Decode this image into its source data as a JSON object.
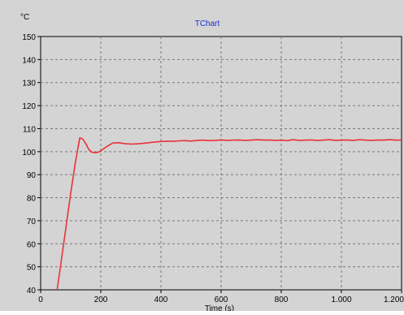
{
  "chart_data": {
    "type": "line",
    "title": "TChart",
    "ylabel": "°C",
    "xlabel": "Time (s)",
    "xlim": [
      0,
      1200
    ],
    "ylim": [
      40,
      150
    ],
    "grid": true,
    "x_ticks": [
      0,
      200,
      400,
      600,
      800,
      1000,
      1200
    ],
    "x_tick_labels": [
      "0",
      "200",
      "400",
      "600",
      "800",
      "1.000",
      "1.200"
    ],
    "y_ticks": [
      40,
      50,
      60,
      70,
      80,
      90,
      100,
      110,
      120,
      130,
      140,
      150
    ],
    "series": [
      {
        "color": "#e8323a",
        "x": [
          55,
          70,
          85,
          100,
          115,
          130,
          140,
          150,
          160,
          170,
          180,
          190,
          200,
          210,
          220,
          230,
          240,
          260,
          280,
          300,
          320,
          340,
          360,
          380,
          400,
          420,
          440,
          460,
          480,
          500,
          520,
          540,
          560,
          580,
          600,
          620,
          640,
          660,
          680,
          700,
          720,
          740,
          760,
          780,
          800,
          820,
          840,
          860,
          880,
          900,
          920,
          940,
          960,
          980,
          1000,
          1020,
          1040,
          1060,
          1080,
          1100,
          1120,
          1140,
          1160,
          1180,
          1200
        ],
        "y": [
          40,
          54,
          68,
          82,
          95,
          106,
          105.5,
          103.5,
          101,
          99.8,
          99.5,
          99.7,
          100.4,
          101.3,
          102.2,
          103,
          103.8,
          103.9,
          103.5,
          103.3,
          103.4,
          103.6,
          103.9,
          104.2,
          104.4,
          104.6,
          104.5,
          104.7,
          104.8,
          104.6,
          104.9,
          105,
          104.8,
          104.9,
          105.1,
          104.9,
          105,
          105.1,
          104.9,
          105,
          105.2,
          105,
          105.1,
          104.9,
          105,
          104.8,
          105.2,
          104.9,
          105,
          105.1,
          104.9,
          105,
          105.2,
          104.9,
          105,
          105.1,
          104.9,
          105.2,
          105,
          104.9,
          105.1,
          105,
          105.2,
          105,
          105
        ]
      }
    ]
  }
}
